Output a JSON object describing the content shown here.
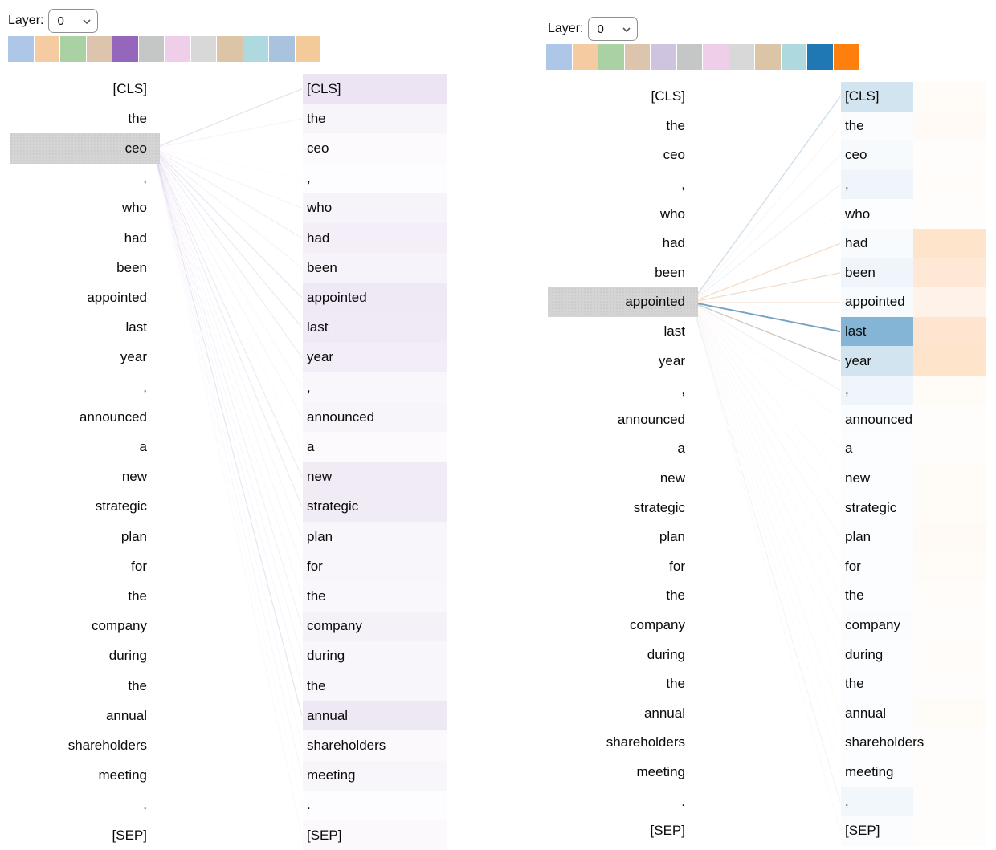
{
  "tokens": [
    "[CLS]",
    "the",
    "ceo",
    ",",
    "who",
    "had",
    "been",
    "appointed",
    "last",
    "year",
    ",",
    "announced",
    "a",
    "new",
    "strategic",
    "plan",
    "for",
    "the",
    "company",
    "during",
    "the",
    "annual",
    "shareholders",
    "meeting",
    ".",
    "[SEP]"
  ],
  "head_palette": {
    "pastel_colors": [
      "#aec7e8",
      "#f5cba2",
      "#a9d1a4",
      "#ddc5ad",
      "#cfc4e0",
      "#c4c7c6",
      "#eecee8",
      "#d8d8d8",
      "#dcc4a6",
      "#aed9de",
      "#a9c2dd",
      "#f3ca99"
    ],
    "full_colors": [
      "#1f77b4",
      "#ff7f0e",
      "#2ca02c",
      "#d62728",
      "#9467bd",
      "#8c564b",
      "#e377c2",
      "#7f7f7f",
      "#bcbd22",
      "#17becf",
      "#1f77b4",
      "#ff7f0e"
    ]
  },
  "panels": [
    {
      "name": "left-attention-panel",
      "layer_control": {
        "label": "Layer:",
        "value": "0"
      },
      "selected_heads": [
        4
      ],
      "selected_token": {
        "index": 2,
        "text": "ceo"
      },
      "attention": [
        {
          "head_index": 4,
          "color": "#9467bd",
          "weights": [
            0.18,
            0.07,
            0.03,
            0.02,
            0.08,
            0.11,
            0.08,
            0.15,
            0.14,
            0.12,
            0.05,
            0.07,
            0.03,
            0.13,
            0.13,
            0.06,
            0.06,
            0.05,
            0.09,
            0.06,
            0.06,
            0.16,
            0.04,
            0.06,
            0.02,
            0.04
          ]
        }
      ]
    },
    {
      "name": "right-attention-panel",
      "layer_control": {
        "label": "Layer:",
        "value": "0"
      },
      "selected_heads": [
        10,
        11
      ],
      "selected_token": {
        "index": 7,
        "text": "appointed"
      },
      "attention": [
        {
          "head_index": 10,
          "color": "#1f77b4",
          "weights": [
            0.2,
            0.02,
            0.04,
            0.07,
            0.01,
            0.03,
            0.07,
            0.03,
            0.55,
            0.2,
            0.07,
            0.02,
            0.01,
            0.01,
            0.01,
            0.01,
            0.01,
            0.01,
            0.02,
            0.01,
            0.01,
            0.01,
            0.01,
            0.01,
            0.06,
            0.02
          ]
        },
        {
          "head_index": 11,
          "color": "#ff7f0e",
          "weights": [
            0.03,
            0.04,
            0.01,
            0.02,
            0.01,
            0.21,
            0.17,
            0.09,
            0.2,
            0.21,
            0.03,
            0.01,
            0.01,
            0.03,
            0.03,
            0.04,
            0.03,
            0.02,
            0.01,
            0.02,
            0.01,
            0.03,
            0.01,
            0.01,
            0.01,
            0.01
          ]
        }
      ]
    }
  ]
}
